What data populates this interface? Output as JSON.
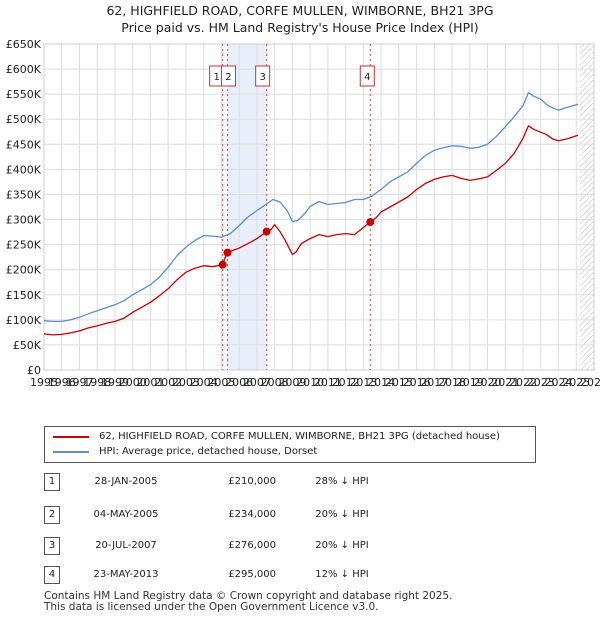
{
  "chart_data": {
    "type": "line",
    "title": "62, HIGHFIELD ROAD, CORFE MULLEN, WIMBORNE, BH21 3PG",
    "subtitle": "Price paid vs. HM Land Registry's House Price Index (HPI)",
    "xlim": [
      1995,
      2026
    ],
    "ylim": [
      0,
      650000
    ],
    "xticks": [
      "1995",
      "1996",
      "1997",
      "1998",
      "1999",
      "2000",
      "2001",
      "2002",
      "2003",
      "2004",
      "2005",
      "2006",
      "2007",
      "2008",
      "2009",
      "2010",
      "2011",
      "2012",
      "2013",
      "2014",
      "2015",
      "2016",
      "2017",
      "2018",
      "2019",
      "2020",
      "2021",
      "2022",
      "2023",
      "2024",
      "2025",
      "2026"
    ],
    "yticks": [
      {
        "value": 0,
        "label": "£0"
      },
      {
        "value": 50000,
        "label": "£50K"
      },
      {
        "value": 100000,
        "label": "£100K"
      },
      {
        "value": 150000,
        "label": "£150K"
      },
      {
        "value": 200000,
        "label": "£200K"
      },
      {
        "value": 250000,
        "label": "£250K"
      },
      {
        "value": 300000,
        "label": "£300K"
      },
      {
        "value": 350000,
        "label": "£350K"
      },
      {
        "value": 400000,
        "label": "£400K"
      },
      {
        "value": 450000,
        "label": "£450K"
      },
      {
        "value": 500000,
        "label": "£500K"
      },
      {
        "value": 550000,
        "label": "£550K"
      },
      {
        "value": 600000,
        "label": "£600K"
      },
      {
        "value": 650000,
        "label": "£650K"
      }
    ],
    "shaded_range": [
      2005.33,
      2007.55
    ],
    "future_hatch_from": 2025.2,
    "series": [
      {
        "name": "62, HIGHFIELD ROAD, CORFE MULLEN, WIMBORNE, BH21 3PG (detached house)",
        "color": "#cc0000",
        "x": [
          1995,
          1995.5,
          1996,
          1996.5,
          1997,
          1997.5,
          1998,
          1998.5,
          1999,
          1999.5,
          2000,
          2000.5,
          2001,
          2001.5,
          2002,
          2002.5,
          2003,
          2003.5,
          2004,
          2004.5,
          2005.07,
          2005.2,
          2005.34,
          2005.6,
          2006,
          2006.5,
          2007,
          2007.55,
          2007.8,
          2008,
          2008.3,
          2008.6,
          2009,
          2009.2,
          2009.5,
          2010,
          2010.5,
          2011,
          2011.5,
          2012,
          2012.5,
          2013.39,
          2013.7,
          2014,
          2014.5,
          2015,
          2015.5,
          2016,
          2016.5,
          2017,
          2017.5,
          2018,
          2018.5,
          2019,
          2019.5,
          2020,
          2020.5,
          2021,
          2021.5,
          2022,
          2022.3,
          2022.6,
          2023,
          2023.3,
          2023.7,
          2024,
          2024.5,
          2025.1
        ],
        "y": [
          72000,
          70000,
          71000,
          74000,
          78000,
          84000,
          88000,
          93000,
          97000,
          103000,
          115000,
          125000,
          135000,
          148000,
          162000,
          180000,
          195000,
          203000,
          208000,
          206000,
          210000,
          224000,
          234000,
          238000,
          243000,
          252000,
          262000,
          276000,
          280000,
          290000,
          276000,
          258000,
          230000,
          235000,
          252000,
          262000,
          270000,
          266000,
          270000,
          272000,
          270000,
          295000,
          303000,
          315000,
          325000,
          335000,
          345000,
          360000,
          372000,
          380000,
          385000,
          388000,
          382000,
          378000,
          381000,
          385000,
          398000,
          412000,
          432000,
          462000,
          487000,
          480000,
          474000,
          470000,
          460000,
          457000,
          461000,
          468000
        ]
      },
      {
        "name": "HPI: Average price, detached house, Dorset",
        "color": "#5a8ed0",
        "x": [
          1995,
          1995.5,
          1996,
          1996.5,
          1997,
          1997.5,
          1998,
          1998.5,
          1999,
          1999.5,
          2000,
          2000.5,
          2001,
          2001.5,
          2002,
          2002.5,
          2003,
          2003.5,
          2004,
          2004.5,
          2005,
          2005.5,
          2006,
          2006.5,
          2007,
          2007.5,
          2007.9,
          2008.3,
          2008.7,
          2009,
          2009.3,
          2009.7,
          2010,
          2010.5,
          2011,
          2011.5,
          2012,
          2012.5,
          2013,
          2013.5,
          2014,
          2014.5,
          2015,
          2015.5,
          2016,
          2016.5,
          2017,
          2017.5,
          2018,
          2018.5,
          2019,
          2019.5,
          2020,
          2020.5,
          2021,
          2021.5,
          2022,
          2022.3,
          2022.6,
          2023,
          2023.3,
          2023.7,
          2024,
          2024.5,
          2025.1
        ],
        "y": [
          98000,
          97000,
          97000,
          100000,
          105000,
          112000,
          118000,
          124000,
          130000,
          138000,
          150000,
          160000,
          170000,
          185000,
          205000,
          228000,
          245000,
          258000,
          268000,
          267000,
          265000,
          272000,
          288000,
          305000,
          318000,
          330000,
          340000,
          335000,
          318000,
          296000,
          298000,
          312000,
          326000,
          336000,
          330000,
          332000,
          334000,
          340000,
          340000,
          347000,
          360000,
          375000,
          385000,
          395000,
          412000,
          428000,
          438000,
          443000,
          447000,
          446000,
          442000,
          444000,
          450000,
          466000,
          485000,
          505000,
          527000,
          553000,
          546000,
          540000,
          530000,
          522000,
          518000,
          524000,
          530000
        ]
      }
    ],
    "sales": [
      {
        "n": "1",
        "date": "28-JAN-2005",
        "x": 2005.07,
        "price": 210000,
        "price_label": "£210,000",
        "hpi": "28% ↓ HPI"
      },
      {
        "n": "2",
        "date": "04-MAY-2005",
        "x": 2005.34,
        "price": 234000,
        "price_label": "£234,000",
        "hpi": "20% ↓ HPI"
      },
      {
        "n": "3",
        "date": "20-JUL-2007",
        "x": 2007.55,
        "price": 276000,
        "price_label": "£276,000",
        "hpi": "20% ↓ HPI"
      },
      {
        "n": "4",
        "date": "23-MAY-2013",
        "x": 2013.39,
        "price": 295000,
        "price_label": "£295,000",
        "hpi": "12% ↓ HPI"
      }
    ]
  },
  "legend": {
    "property_label": "62, HIGHFIELD ROAD, CORFE MULLEN, WIMBORNE, BH21 3PG (detached house)",
    "hpi_label": "HPI: Average price, detached house, Dorset",
    "property_color": "#cc0000",
    "hpi_color": "#5a8ed0"
  },
  "footer": {
    "line1": "Contains HM Land Registry data © Crown copyright and database right 2025.",
    "line2": "This data is licensed under the Open Government Licence v3.0."
  }
}
